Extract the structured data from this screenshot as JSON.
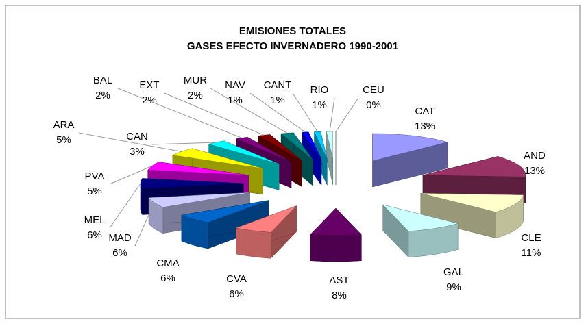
{
  "chart_data": {
    "type": "pie3d",
    "title": "EMISIONES TOTALES",
    "subtitle": "GASES EFECTO INVERNADERO 1990-2001",
    "categories": [
      "CAT",
      "AND",
      "CLE",
      "GAL",
      "AST",
      "CVA",
      "CMA",
      "MAD",
      "MEL",
      "PVA",
      "ARA",
      "CAN",
      "BAL",
      "EXT",
      "MUR",
      "NAV",
      "CANT",
      "RIO",
      "CEU"
    ],
    "values": [
      13,
      13,
      11,
      9,
      8,
      6,
      6,
      6,
      6,
      5,
      5,
      3,
      2,
      2,
      2,
      1,
      1,
      1,
      0
    ],
    "value_labels": [
      "13%",
      "13%",
      "11%",
      "9%",
      "8%",
      "6%",
      "6%",
      "6%",
      "6%",
      "5%",
      "5%",
      "3%",
      "2%",
      "2%",
      "2%",
      "1%",
      "1%",
      "1%",
      "0%"
    ],
    "colors": [
      "#9999ff",
      "#993366",
      "#ffffcc",
      "#ccffff",
      "#660066",
      "#ff8080",
      "#0066cc",
      "#ccccff",
      "#000080",
      "#ff00ff",
      "#ffff00",
      "#00ffff",
      "#800080",
      "#800000",
      "#008080",
      "#0000ff",
      "#00ccff",
      "#ccffff",
      "#ccffcc"
    ]
  }
}
